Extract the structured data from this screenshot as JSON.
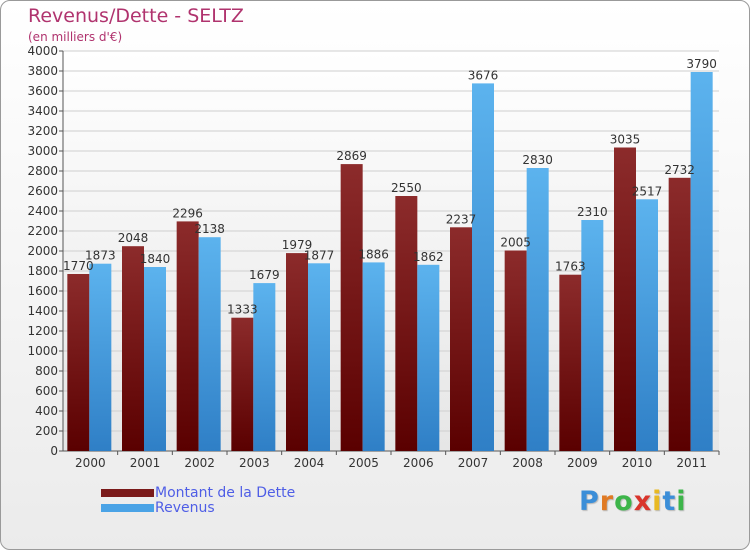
{
  "chart_data": {
    "type": "bar",
    "title": "Revenus/Dette - SELTZ",
    "subtitle": "(en milliers d'€)",
    "categories": [
      "2000",
      "2001",
      "2002",
      "2003",
      "2004",
      "2005",
      "2006",
      "2007",
      "2008",
      "2009",
      "2010",
      "2011"
    ],
    "series": [
      {
        "name": "Montant de la Dette",
        "values": [
          1770,
          2048,
          2296,
          1333,
          1979,
          2869,
          2550,
          2237,
          2005,
          1763,
          3035,
          2732
        ],
        "color": "#7a1a1a"
      },
      {
        "name": "Revenus",
        "values": [
          1873,
          1840,
          2138,
          1679,
          1877,
          1886,
          1862,
          3676,
          2830,
          2310,
          2517,
          3790
        ],
        "color": "#4aa3e6"
      }
    ],
    "ylim": [
      0,
      4000
    ],
    "ytick_step": 200,
    "grid": true,
    "legend": "bottom-left"
  },
  "logo": {
    "letters": [
      "P",
      "r",
      "o",
      "x",
      "i",
      "t",
      "i"
    ],
    "colors": [
      "#3b8ed8",
      "#e07a24",
      "#3db54a",
      "#d9342b",
      "#e8b923",
      "#3b8ed8",
      "#3db54a"
    ]
  }
}
